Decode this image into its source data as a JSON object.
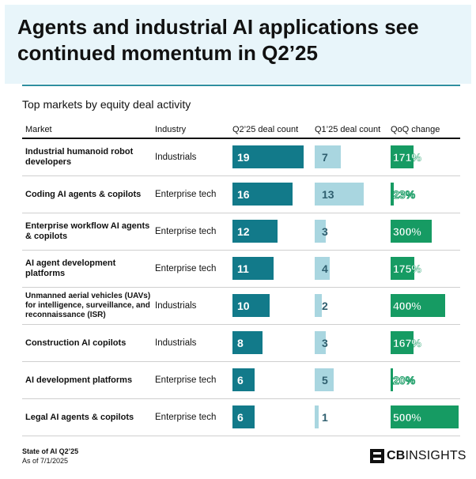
{
  "header": {
    "title": "Agents and industrial AI applications see continued momentum in Q2’25"
  },
  "chart_data": {
    "type": "table",
    "title": "Agents and industrial AI applications see continued momentum in Q2’25",
    "subtitle": "Top markets by equity deal activity",
    "columns": [
      "Market",
      "Industry",
      "Q2’25 deal count",
      "Q1’25 deal count",
      "QoQ change"
    ],
    "rows": [
      {
        "market": "Industrial humanoid robot developers",
        "industry": "Industrials",
        "q2": 19,
        "q1": 7,
        "qoq": 171,
        "qoq_label": "171%"
      },
      {
        "market": "Coding AI agents & copilots",
        "industry": "Enterprise tech",
        "q2": 16,
        "q1": 13,
        "qoq": 23,
        "qoq_label": "23%"
      },
      {
        "market": "Enterprise workflow AI agents & copilots",
        "industry": "Enterprise tech",
        "q2": 12,
        "q1": 3,
        "qoq": 300,
        "qoq_label": "300%"
      },
      {
        "market": "AI agent development platforms",
        "industry": "Enterprise tech",
        "q2": 11,
        "q1": 4,
        "qoq": 175,
        "qoq_label": "175%"
      },
      {
        "market": "Unmanned aerial vehicles (UAVs) for intelligence, surveillance, and reconnaissance (ISR)",
        "industry": "Industrials",
        "q2": 10,
        "q1": 2,
        "qoq": 400,
        "qoq_label": "400%"
      },
      {
        "market": "Construction AI copilots",
        "industry": "Industrials",
        "q2": 8,
        "q1": 3,
        "qoq": 167,
        "qoq_label": "167%"
      },
      {
        "market": "AI development platforms",
        "industry": "Enterprise tech",
        "q2": 6,
        "q1": 5,
        "qoq": 20,
        "qoq_label": "20%"
      },
      {
        "market": "Legal AI agents & copilots",
        "industry": "Enterprise tech",
        "q2": 6,
        "q1": 1,
        "qoq": 500,
        "qoq_label": "500%"
      }
    ],
    "scale": {
      "deal_count_max": 19,
      "qoq_max": 500
    },
    "colors": {
      "q2": "#127a8a",
      "q1": "#a9d6e0",
      "qoq": "#169b63"
    }
  },
  "footer": {
    "line1": "State of AI Q2’25",
    "line2": "As of 7/1/2025",
    "logo_cb": "CB",
    "logo_insights": "INSIGHTS"
  }
}
